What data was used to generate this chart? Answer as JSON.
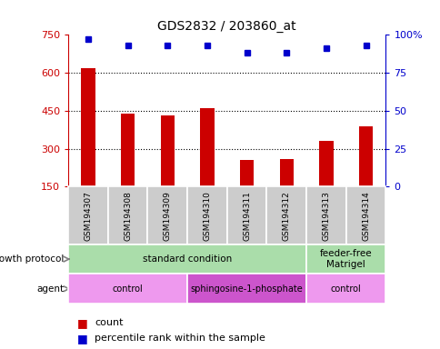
{
  "title": "GDS2832 / 203860_at",
  "samples": [
    "GSM194307",
    "GSM194308",
    "GSM194309",
    "GSM194310",
    "GSM194311",
    "GSM194312",
    "GSM194313",
    "GSM194314"
  ],
  "counts": [
    620,
    440,
    430,
    460,
    255,
    260,
    330,
    390
  ],
  "percentile_ranks": [
    97,
    93,
    93,
    93,
    88,
    88,
    91,
    93
  ],
  "ylim_left": [
    150,
    750
  ],
  "ylim_right": [
    0,
    100
  ],
  "yticks_left": [
    150,
    300,
    450,
    600,
    750
  ],
  "yticks_right": [
    0,
    25,
    50,
    75,
    100
  ],
  "bar_color": "#cc0000",
  "dot_color": "#0000cc",
  "growth_protocol_color": "#aaddaa",
  "agent_color_light": "#ee99ee",
  "agent_color_dark": "#cc55cc",
  "sample_bg_color": "#cccccc",
  "growth_protocol_groups": [
    {
      "label": "standard condition",
      "start": 0,
      "end": 6
    },
    {
      "label": "feeder-free\nMatrigel",
      "start": 6,
      "end": 8
    }
  ],
  "agent_groups": [
    {
      "label": "control",
      "start": 0,
      "end": 3
    },
    {
      "label": "sphingosine-1-phosphate",
      "start": 3,
      "end": 6
    },
    {
      "label": "control",
      "start": 6,
      "end": 8
    }
  ],
  "left_ylabel_color": "#cc0000",
  "right_ylabel_color": "#0000cc",
  "bar_width": 0.35
}
